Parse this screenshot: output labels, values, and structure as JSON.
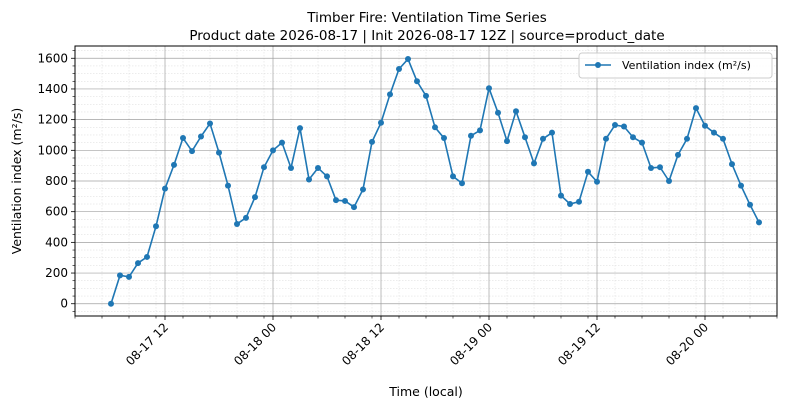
{
  "chart_data": {
    "type": "line",
    "title": "Timber Fire: Ventilation Time Series",
    "subtitle": "Product date 2026-08-17 | Init 2026-08-17 12Z | source=product_date",
    "xlabel": "Time (local)",
    "ylabel": "Ventilation index (m²/s)",
    "x_start": "2026-08-17 06:00",
    "x_step_hours": 1,
    "xlim": [
      "2026-08-17 02:00",
      "2026-08-20 08:00"
    ],
    "ylim": [
      -80,
      1680
    ],
    "y_ticks": [
      0,
      200,
      400,
      600,
      800,
      1000,
      1200,
      1400,
      1600
    ],
    "x_ticks": [
      "08-17 12",
      "08-18 00",
      "08-18 12",
      "08-19 00",
      "08-19 12",
      "08-20 00"
    ],
    "grid": true,
    "legend_position": "top-right",
    "series": [
      {
        "name": "Ventilation index (m²/s)",
        "color": "#1f77b4",
        "values": [
          0,
          185,
          175,
          265,
          305,
          505,
          750,
          905,
          1080,
          995,
          1090,
          1175,
          985,
          770,
          520,
          560,
          695,
          890,
          1000,
          1050,
          885,
          1145,
          810,
          885,
          830,
          675,
          670,
          630,
          745,
          1055,
          1180,
          1365,
          1530,
          1595,
          1450,
          1355,
          1150,
          1080,
          830,
          785,
          1095,
          1130,
          1405,
          1245,
          1060,
          1255,
          1085,
          915,
          1075,
          1115,
          705,
          650,
          665,
          860,
          795,
          1075,
          1165,
          1155,
          1085,
          1050,
          885,
          890,
          800,
          970,
          1075,
          1275,
          1160,
          1115,
          1075,
          910,
          770,
          645,
          530
        ]
      }
    ]
  }
}
